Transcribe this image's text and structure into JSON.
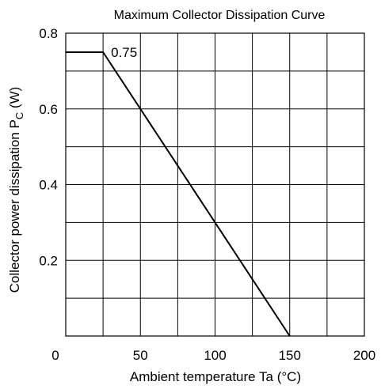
{
  "chart_data": {
    "type": "line",
    "title": "Maximum Collector Dissipation Curve",
    "xlabel": "Ambient temperature  Ta  (°C)",
    "ylabel_main": "Collector power dissipation  P",
    "ylabel_sub": "C",
    "ylabel_unit": "  (W)",
    "xlim": [
      0,
      200
    ],
    "ylim": [
      0,
      0.8
    ],
    "x_ticks": [
      0,
      50,
      100,
      150,
      200
    ],
    "x_tick_labels": [
      "0",
      "50",
      "100",
      "150",
      "200"
    ],
    "y_ticks": [
      0.2,
      0.4,
      0.6,
      0.8
    ],
    "y_tick_labels": [
      "0.2",
      "0.4",
      "0.6",
      "0.8"
    ],
    "x_grid": [
      0,
      25,
      50,
      75,
      100,
      125,
      150,
      175,
      200
    ],
    "y_grid": [
      0,
      0.1,
      0.2,
      0.3,
      0.4,
      0.5,
      0.6,
      0.7,
      0.8
    ],
    "grid": true,
    "series": [
      {
        "x": [
          0,
          25,
          150
        ],
        "y": [
          0.75,
          0.75,
          0
        ]
      }
    ],
    "annotations": [
      {
        "text": "0.75",
        "x": 25,
        "y": 0.75
      }
    ],
    "color": "#000000"
  }
}
